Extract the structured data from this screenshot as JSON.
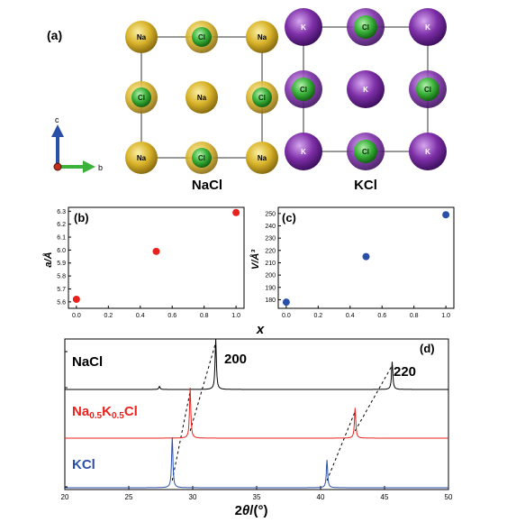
{
  "panel_a": {
    "label": "(a)",
    "nacl_title": "NaCl",
    "kcl_title": "KCl",
    "axes": {
      "c": "c",
      "b": "b"
    },
    "nacl_atoms": [
      [
        "Na",
        "Cl",
        "Na"
      ],
      [
        "Cl",
        "Na",
        "Cl"
      ],
      [
        "Na",
        "Cl",
        "Na"
      ]
    ],
    "kcl_atoms": [
      [
        "K",
        "Cl",
        "K"
      ],
      [
        "Cl",
        "K",
        "Cl"
      ],
      [
        "K",
        "Cl",
        "K"
      ]
    ],
    "colors": {
      "na": "#d9b42a",
      "k": "#7e2fa8",
      "cl": "#3bb33b"
    }
  },
  "shared_xlabel": "x",
  "chart_data": [
    {
      "type": "scatter",
      "label": "(b)",
      "ylabel": "a/Å",
      "x": [
        0.0,
        0.5,
        1.0
      ],
      "y": [
        5.62,
        5.99,
        6.29
      ],
      "xlim": [
        -0.05,
        1.05
      ],
      "ylim": [
        5.55,
        6.33
      ],
      "xticks": [
        "0.0",
        "0.2",
        "0.4",
        "0.6",
        "0.8",
        "1.0"
      ],
      "yticks": [
        "5.6",
        "5.7",
        "5.8",
        "5.9",
        "6.0",
        "6.1",
        "6.2",
        "6.3"
      ],
      "color": "#e8231e"
    },
    {
      "type": "scatter",
      "label": "(c)",
      "ylabel": "V/Å³",
      "x": [
        0.0,
        0.5,
        1.0
      ],
      "y": [
        178,
        215,
        249
      ],
      "xlim": [
        -0.05,
        1.05
      ],
      "ylim": [
        173,
        255
      ],
      "xticks": [
        "0.0",
        "0.2",
        "0.4",
        "0.6",
        "0.8",
        "1.0"
      ],
      "yticks": [
        "180",
        "190",
        "200",
        "210",
        "220",
        "230",
        "240",
        "250"
      ],
      "color": "#2a4fa8"
    },
    {
      "type": "line",
      "label": "(d)",
      "xlabel": "2θ/(°)",
      "xlim": [
        20,
        50
      ],
      "xticks": [
        "20",
        "25",
        "30",
        "35",
        "40",
        "45",
        "50"
      ],
      "peak_labels": [
        "200",
        "220"
      ],
      "series": [
        {
          "name": "NaCl",
          "color": "#000000",
          "peaks": [
            [
              27.4,
              0.06
            ],
            [
              31.8,
              1.0
            ],
            [
              45.6,
              0.55
            ]
          ]
        },
        {
          "name": "Na0.5K0.5Cl",
          "color": "#e8231e",
          "peaks": [
            [
              29.8,
              1.0
            ],
            [
              42.7,
              0.6
            ]
          ]
        },
        {
          "name": "KCl",
          "color": "#2a4fa8",
          "peaks": [
            [
              28.4,
              1.0
            ],
            [
              40.5,
              0.55
            ]
          ]
        }
      ]
    }
  ]
}
